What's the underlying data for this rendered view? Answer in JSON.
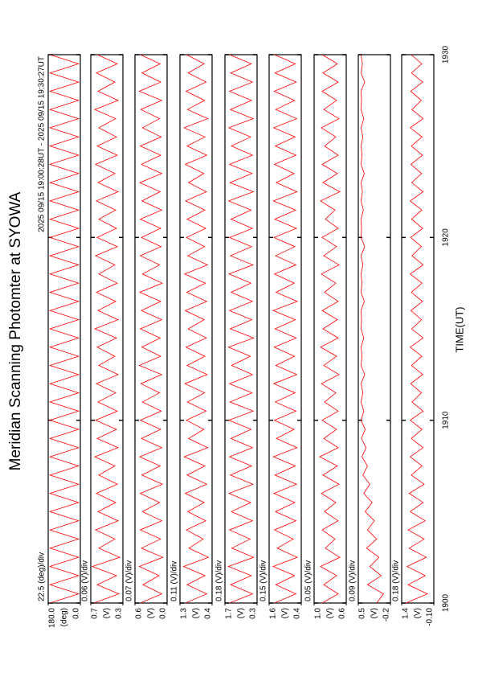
{
  "chart_data": {
    "type": "line",
    "title": "Meridian Scanning Photomter at SYOWA",
    "subtitle": "2025 09/15 19:00:28UT - 2025 09/15 19:30:27UT",
    "xlabel": "TIME(UT)",
    "color": "#ff0000",
    "xlim": [
      1900,
      1930
    ],
    "xticks": [
      1900,
      1910,
      1920,
      1930
    ],
    "x": [
      1900,
      1900.5,
      1901,
      1901.5,
      1902,
      1902.5,
      1903,
      1903.5,
      1904,
      1904.5,
      1905,
      1905.5,
      1906,
      1906.5,
      1907,
      1907.5,
      1908,
      1908.5,
      1909,
      1909.5,
      1910,
      1910.5,
      1911,
      1911.5,
      1912,
      1912.5,
      1913,
      1913.5,
      1914,
      1914.5,
      1915,
      1915.5,
      1916,
      1916.5,
      1917,
      1917.5,
      1918,
      1918.5,
      1919,
      1919.5,
      1920,
      1920.5,
      1921,
      1921.5,
      1922,
      1922.5,
      1923,
      1923.5,
      1924,
      1924.5,
      1925,
      1925.5,
      1926,
      1926.5,
      1927,
      1927.5,
      1928,
      1928.5,
      1929,
      1929.5,
      1930
    ],
    "panels": [
      {
        "scale_label": "22.5 (deg)/div",
        "unit": "(deg)",
        "ylim": [
          0,
          180
        ],
        "yticks": [
          {
            "value": 180,
            "label": "180.0"
          },
          {
            "value": 0,
            "label": "0.0"
          }
        ],
        "values": [
          170,
          10,
          170,
          10,
          170,
          10,
          170,
          10,
          170,
          10,
          170,
          10,
          170,
          10,
          170,
          10,
          170,
          10,
          170,
          10,
          170,
          10,
          170,
          10,
          170,
          10,
          170,
          10,
          170,
          10,
          170,
          10,
          170,
          10,
          170,
          10,
          170,
          10,
          170,
          10,
          170,
          10,
          170,
          10,
          170,
          10,
          170,
          10,
          170,
          10,
          170,
          10,
          170,
          10,
          170,
          10,
          170,
          10,
          170,
          10,
          170
        ]
      },
      {
        "scale_label": "0.06 (V)/div",
        "unit": "(V)",
        "ylim": [
          0.3,
          0.7
        ],
        "yticks": [
          0.7,
          0.3
        ],
        "values": [
          0.66,
          0.35,
          0.62,
          0.38,
          0.68,
          0.34,
          0.6,
          0.4,
          0.64,
          0.36,
          0.61,
          0.39,
          0.63,
          0.37,
          0.6,
          0.4,
          0.65,
          0.36,
          0.62,
          0.38,
          0.64,
          0.37,
          0.61,
          0.39,
          0.63,
          0.36,
          0.6,
          0.4,
          0.62,
          0.38,
          0.65,
          0.36,
          0.61,
          0.39,
          0.63,
          0.37,
          0.6,
          0.4,
          0.64,
          0.37,
          0.62,
          0.38,
          0.6,
          0.39,
          0.63,
          0.36,
          0.61,
          0.4,
          0.64,
          0.37,
          0.62,
          0.38,
          0.6,
          0.39,
          0.65,
          0.36,
          0.61,
          0.4,
          0.63,
          0.37,
          0.62
        ]
      },
      {
        "scale_label": "0.07 (V)/div",
        "unit": "(V)",
        "ylim": [
          0.0,
          0.6
        ],
        "yticks": [
          0.6,
          {
            "value": 0,
            "label": "0.0"
          }
        ],
        "values": [
          0.5,
          0.1,
          0.45,
          0.15,
          0.52,
          0.08,
          0.48,
          0.12,
          0.5,
          0.1,
          0.46,
          0.14,
          0.5,
          0.09,
          0.47,
          0.13,
          0.51,
          0.1,
          0.48,
          0.12,
          0.5,
          0.11,
          0.46,
          0.14,
          0.49,
          0.1,
          0.52,
          0.12,
          0.47,
          0.13,
          0.5,
          0.1,
          0.48,
          0.12,
          0.51,
          0.09,
          0.46,
          0.14,
          0.5,
          0.11,
          0.48,
          0.12,
          0.5,
          0.1,
          0.47,
          0.13,
          0.51,
          0.1,
          0.48,
          0.12,
          0.5,
          0.11,
          0.46,
          0.14,
          0.49,
          0.1,
          0.52,
          0.12,
          0.47,
          0.13,
          0.5
        ]
      },
      {
        "scale_label": "0.11 (V)/div",
        "unit": "(V)",
        "ylim": [
          0.4,
          1.3
        ],
        "yticks": [
          1.3,
          0.4
        ],
        "values": [
          1.15,
          0.55,
          1.1,
          0.6,
          1.2,
          0.5,
          1.05,
          0.65,
          1.12,
          0.58,
          1.08,
          0.62,
          1.15,
          0.55,
          1.1,
          0.6,
          1.18,
          0.52,
          1.06,
          0.63,
          1.12,
          0.57,
          1.09,
          0.61,
          1.16,
          0.54,
          1.1,
          0.6,
          1.13,
          0.56,
          1.07,
          0.62,
          1.15,
          0.55,
          1.11,
          0.59,
          1.17,
          0.53,
          1.08,
          0.61,
          1.12,
          0.58,
          1.1,
          0.6,
          1.14,
          0.56,
          1.06,
          0.63,
          1.15,
          0.55,
          1.1,
          0.6,
          1.18,
          0.52,
          1.09,
          0.61,
          1.13,
          0.57,
          1.07,
          0.62,
          1.12
        ]
      },
      {
        "scale_label": "0.18 (V)/div",
        "unit": "(V)",
        "ylim": [
          0.3,
          1.7
        ],
        "yticks": [
          1.7,
          0.3
        ],
        "values": [
          1.5,
          0.5,
          1.45,
          0.55,
          1.55,
          0.45,
          1.4,
          0.6,
          1.5,
          0.5,
          1.42,
          0.58,
          1.52,
          0.48,
          1.46,
          0.54,
          1.5,
          0.5,
          1.44,
          0.56,
          1.53,
          0.47,
          1.48,
          0.52,
          1.5,
          0.5,
          1.41,
          0.59,
          1.55,
          0.45,
          1.47,
          0.53,
          1.5,
          0.5,
          1.43,
          0.57,
          1.52,
          0.48,
          1.46,
          0.54,
          1.5,
          0.5,
          1.44,
          0.56,
          1.54,
          0.46,
          1.48,
          0.52,
          1.5,
          0.5,
          1.42,
          0.58,
          1.53,
          0.47,
          1.46,
          0.54,
          1.5,
          0.5,
          1.45,
          0.55,
          1.5
        ]
      },
      {
        "scale_label": "0.15 (V)/div",
        "unit": "(V)",
        "ylim": [
          0.4,
          1.6
        ],
        "yticks": [
          1.6,
          0.4
        ],
        "values": [
          1.4,
          0.6,
          1.35,
          0.65,
          1.45,
          0.55,
          1.3,
          0.7,
          1.4,
          0.6,
          1.36,
          0.64,
          1.42,
          0.58,
          1.38,
          0.62,
          1.44,
          0.56,
          1.33,
          0.67,
          1.4,
          0.6,
          1.37,
          0.63,
          1.43,
          0.57,
          1.35,
          0.65,
          1.41,
          0.59,
          1.38,
          0.62,
          1.45,
          0.55,
          1.34,
          0.66,
          1.4,
          0.6,
          1.36,
          0.64,
          1.42,
          0.58,
          1.39,
          0.61,
          1.44,
          0.56,
          1.33,
          0.67,
          1.4,
          0.6,
          1.37,
          0.63,
          1.43,
          0.57,
          1.35,
          0.65,
          1.41,
          0.59,
          1.38,
          0.62,
          1.4
        ]
      },
      {
        "scale_label": "0.05 (V)/div",
        "unit": "(V)",
        "ylim": [
          0.6,
          1.0
        ],
        "yticks": [
          {
            "value": 1,
            "label": "1.0"
          },
          0.6
        ],
        "values": [
          0.9,
          0.7,
          0.88,
          0.72,
          0.92,
          0.68,
          0.86,
          0.74,
          0.9,
          0.7,
          0.87,
          0.73,
          0.91,
          0.69,
          0.89,
          0.71,
          0.93,
          0.7,
          0.88,
          0.72,
          0.9,
          0.7,
          0.87,
          0.73,
          0.91,
          0.69,
          0.88,
          0.72,
          0.92,
          0.7,
          0.89,
          0.71,
          0.9,
          0.7,
          0.87,
          0.73,
          0.91,
          0.69,
          0.88,
          0.72,
          0.9,
          0.7,
          0.86,
          0.74,
          0.92,
          0.68,
          0.89,
          0.71,
          0.9,
          0.7,
          0.87,
          0.73,
          0.91,
          0.69,
          0.88,
          0.72,
          0.9,
          0.7,
          0.89,
          0.71,
          0.9
        ]
      },
      {
        "scale_label": "0.09 (V)/div",
        "unit": "(V)",
        "ylim": [
          -0.2,
          0.5
        ],
        "yticks": [
          0.5,
          -0.2
        ],
        "values": [
          0.1,
          -0.05,
          0.3,
          0.0,
          0.25,
          0.05,
          0.32,
          0.1,
          0.3,
          0.15,
          0.35,
          0.2,
          0.38,
          0.25,
          0.4,
          0.3,
          0.42,
          0.33,
          0.43,
          0.35,
          0.44,
          0.38,
          0.44,
          0.4,
          0.44,
          0.36,
          0.44,
          0.42,
          0.44,
          0.38,
          0.44,
          0.43,
          0.44,
          0.37,
          0.44,
          0.42,
          0.44,
          0.4,
          0.44,
          0.36,
          0.44,
          0.43,
          0.44,
          0.39,
          0.44,
          0.41,
          0.44,
          0.37,
          0.44,
          0.42,
          0.44,
          0.4,
          0.44,
          0.38,
          0.44,
          0.43,
          0.44,
          0.36,
          0.44,
          0.41,
          0.44
        ]
      },
      {
        "scale_label": "0.18 (V)/div",
        "unit": "(V)",
        "ylim": [
          -0.1,
          1.4
        ],
        "yticks": [
          1.4,
          {
            "value": -0.1,
            "label": "-0.10"
          }
        ],
        "values": [
          1.2,
          0.2,
          1.1,
          0.3,
          1.15,
          0.25,
          1.05,
          0.35,
          1.1,
          0.3,
          1.0,
          0.4,
          1.05,
          0.35,
          0.95,
          0.45,
          1.0,
          0.4,
          0.95,
          0.45,
          1.0,
          0.4,
          0.92,
          0.48,
          0.98,
          0.42,
          0.94,
          0.46,
          1.0,
          0.4,
          0.93,
          0.47,
          0.97,
          0.43,
          0.95,
          0.45,
          1.0,
          0.4,
          0.92,
          0.48,
          0.98,
          0.42,
          0.94,
          0.46,
          1.0,
          0.4,
          0.93,
          0.47,
          0.97,
          0.43,
          0.95,
          0.45,
          1.0,
          0.4,
          0.92,
          0.48,
          0.98,
          0.42,
          0.94,
          0.46,
          0.96
        ]
      }
    ]
  }
}
